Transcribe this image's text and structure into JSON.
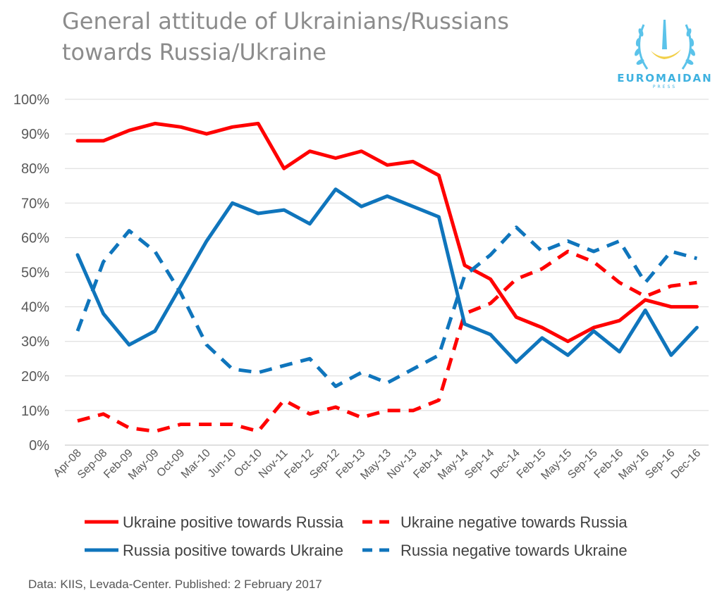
{
  "header": {
    "title_line1": "General attitude of Ukrainians/Russians",
    "title_line2": "towards Russia/Ukraine"
  },
  "logo": {
    "brand": "EUROMAIDAN",
    "sub": "PRESS",
    "icon": "euromaidan-logo-icon"
  },
  "source": "Data: KIIS, Levada-Center. Published: 2 February 2017",
  "chart_data": {
    "type": "line",
    "title": "General attitude of Ukrainians/Russians towards Russia/Ukraine",
    "xlabel": "",
    "ylabel": "",
    "ylim": [
      0,
      100
    ],
    "y_ticks": [
      "0%",
      "10%",
      "20%",
      "30%",
      "40%",
      "50%",
      "60%",
      "70%",
      "80%",
      "90%",
      "100%"
    ],
    "grid": true,
    "legend_position": "bottom",
    "categories": [
      "Apr-08",
      "Sep-08",
      "Feb-09",
      "May-09",
      "Oct-09",
      "Mar-10",
      "Jun-10",
      "Oct-10",
      "Nov-11",
      "Feb-12",
      "Sep-12",
      "Feb-13",
      "May-13",
      "Nov-13",
      "Feb-14",
      "May-14",
      "Sep-14",
      "Dec-14",
      "Feb-15",
      "May-15",
      "Sep-15",
      "Feb-16",
      "May-16",
      "Sep-16",
      "Dec-16"
    ],
    "series": [
      {
        "name": "Ukraine positive towards Russia",
        "color": "#ff0000",
        "dashed": false,
        "values": [
          88,
          88,
          91,
          93,
          92,
          90,
          92,
          93,
          80,
          85,
          83,
          85,
          81,
          82,
          78,
          52,
          48,
          37,
          34,
          30,
          34,
          36,
          42,
          40,
          40
        ]
      },
      {
        "name": "Ukraine negative towards Russia",
        "color": "#ff0000",
        "dashed": true,
        "values": [
          7,
          9,
          5,
          4,
          6,
          6,
          6,
          4,
          13,
          9,
          11,
          8,
          10,
          10,
          13,
          38,
          41,
          48,
          51,
          56,
          53,
          47,
          43,
          46,
          47
        ]
      },
      {
        "name": "Russia positive towards Ukraine",
        "color": "#0f75bc",
        "dashed": false,
        "values": [
          55,
          38,
          29,
          33,
          46,
          59,
          70,
          67,
          68,
          64,
          74,
          69,
          72,
          69,
          66,
          35,
          32,
          24,
          31,
          26,
          33,
          27,
          39,
          26,
          34
        ]
      },
      {
        "name": "Russia negative towards Ukraine",
        "color": "#0f75bc",
        "dashed": true,
        "values": [
          33,
          53,
          62,
          56,
          44,
          29,
          22,
          21,
          23,
          25,
          17,
          21,
          18,
          22,
          26,
          49,
          55,
          63,
          56,
          59,
          56,
          59,
          47,
          56,
          54
        ]
      }
    ]
  }
}
